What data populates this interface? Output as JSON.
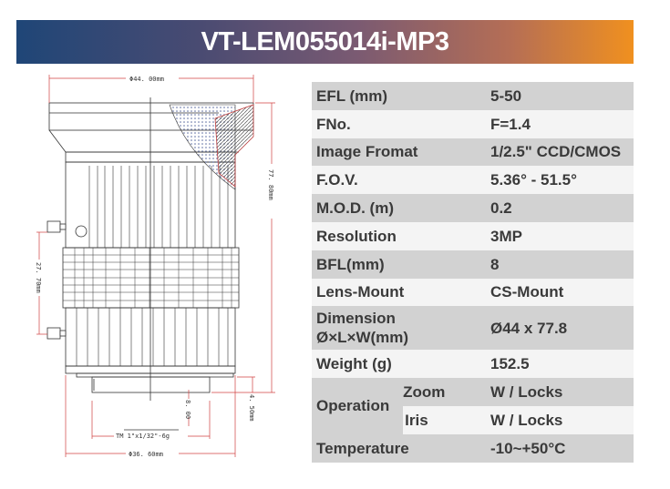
{
  "title": "VT-LEM055014i-MP3",
  "drawing": {
    "dim_top": "Φ44. 00mm",
    "dim_length": "77. 80mm",
    "dim_screws": "27. 70mm",
    "dim_bfl": "8. 00",
    "dim_flange": "4. 50mm",
    "dim_thread": "TM  1\"x1/32\"-6g",
    "dim_bottom": "Φ36. 60mm",
    "line_color": "#333333",
    "dimension_color": "#d04040"
  },
  "specs": [
    {
      "label": "EFL (mm)",
      "value": "5-50"
    },
    {
      "label": "FNo.",
      "value": "F=1.4"
    },
    {
      "label": "Image Fromat",
      "value": "1/2.5\" CCD/CMOS"
    },
    {
      "label": "F.O.V.",
      "value": "5.36° - 51.5°"
    },
    {
      "label": "M.O.D. (m)",
      "value": "0.2"
    },
    {
      "label": "Resolution",
      "value": "3MP"
    },
    {
      "label": "BFL(mm)",
      "value": "8"
    },
    {
      "label": "Lens-Mount",
      "value": "CS-Mount"
    },
    {
      "label": "Dimension",
      "label2": "Ø×L×W(mm)",
      "value": "Ø44 x 77.8"
    },
    {
      "label": "Weight (g)",
      "value": "152.5"
    }
  ],
  "operation": {
    "label": "Operation",
    "rows": [
      {
        "label": "Zoom",
        "value": "W / Locks"
      },
      {
        "label": "Iris",
        "value": "W / Locks"
      }
    ]
  },
  "temperature": {
    "label": "Temperature",
    "value": "-10~+50°C"
  }
}
